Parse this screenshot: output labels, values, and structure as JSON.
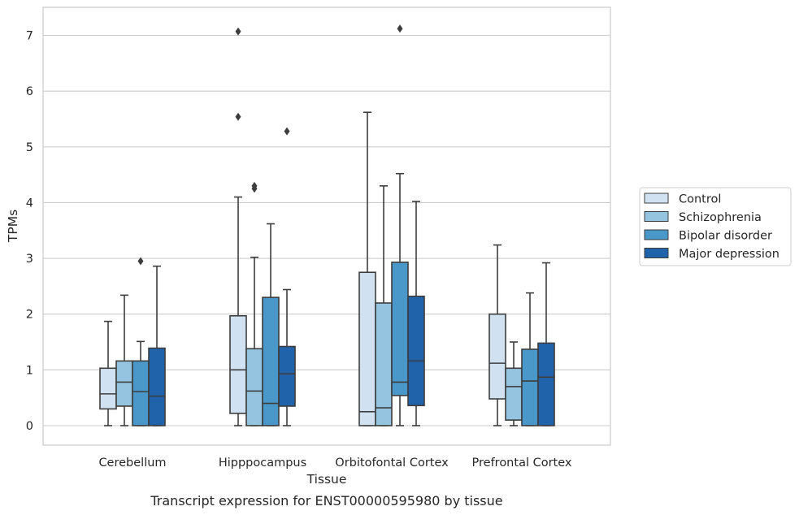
{
  "chart_data": {
    "type": "box",
    "xlabel": "Tissue",
    "ylabel": "TPMs",
    "caption": "Transcript expression for ENST00000595980 by tissue",
    "ylim": [
      -0.35,
      7.5
    ],
    "yticks": [
      0,
      1,
      2,
      3,
      4,
      5,
      6,
      7
    ],
    "grid": true,
    "legend_position": "right",
    "categories": [
      "Cerebellum",
      "Hipppocampus",
      "Orbitofontal Cortex",
      "Prefrontal Cortex"
    ],
    "series": [
      {
        "name": "Control",
        "color": "#d0e1f2",
        "boxes": [
          {
            "whislo": 0,
            "q1": 0.3,
            "med": 0.57,
            "q3": 1.03,
            "whishi": 1.87,
            "fliers": []
          },
          {
            "whislo": 0,
            "q1": 0.22,
            "med": 1.0,
            "q3": 1.97,
            "whishi": 4.1,
            "fliers": [
              5.54,
              7.07
            ]
          },
          {
            "whislo": 0,
            "q1": 0,
            "med": 0.25,
            "q3": 2.75,
            "whishi": 5.62,
            "fliers": []
          },
          {
            "whislo": 0,
            "q1": 0.48,
            "med": 1.12,
            "q3": 2.0,
            "whishi": 3.24,
            "fliers": []
          }
        ]
      },
      {
        "name": "Schizophrenia",
        "color": "#94c4df",
        "boxes": [
          {
            "whislo": 0,
            "q1": 0.35,
            "med": 0.78,
            "q3": 1.16,
            "whishi": 2.34,
            "fliers": []
          },
          {
            "whislo": 0,
            "q1": 0,
            "med": 0.62,
            "q3": 1.38,
            "whishi": 3.02,
            "fliers": [
              4.25,
              4.3
            ]
          },
          {
            "whislo": 0,
            "q1": 0,
            "med": 0.32,
            "q3": 2.2,
            "whishi": 4.3,
            "fliers": []
          },
          {
            "whislo": 0,
            "q1": 0.1,
            "med": 0.7,
            "q3": 1.03,
            "whishi": 1.5,
            "fliers": []
          }
        ]
      },
      {
        "name": "Bipolar disorder",
        "color": "#4a98c9",
        "boxes": [
          {
            "whislo": 0,
            "q1": 0,
            "med": 0.61,
            "q3": 1.16,
            "whishi": 1.51,
            "fliers": [
              2.95
            ]
          },
          {
            "whislo": 0,
            "q1": 0,
            "med": 0.4,
            "q3": 2.3,
            "whishi": 3.62,
            "fliers": []
          },
          {
            "whislo": 0,
            "q1": 0.54,
            "med": 0.78,
            "q3": 2.93,
            "whishi": 4.52,
            "fliers": [
              7.12
            ]
          },
          {
            "whislo": 0,
            "q1": 0,
            "med": 0.8,
            "q3": 1.37,
            "whishi": 2.38,
            "fliers": []
          }
        ]
      },
      {
        "name": "Major depression",
        "color": "#2163aa",
        "boxes": [
          {
            "whislo": 0,
            "q1": 0,
            "med": 0.53,
            "q3": 1.39,
            "whishi": 2.86,
            "fliers": []
          },
          {
            "whislo": 0,
            "q1": 0.35,
            "med": 0.93,
            "q3": 1.42,
            "whishi": 2.44,
            "fliers": [
              5.28
            ]
          },
          {
            "whislo": 0,
            "q1": 0.36,
            "med": 1.16,
            "q3": 2.32,
            "whishi": 4.02,
            "fliers": []
          },
          {
            "whislo": 0,
            "q1": 0,
            "med": 0.87,
            "q3": 1.48,
            "whishi": 2.92,
            "fliers": []
          }
        ]
      }
    ]
  }
}
